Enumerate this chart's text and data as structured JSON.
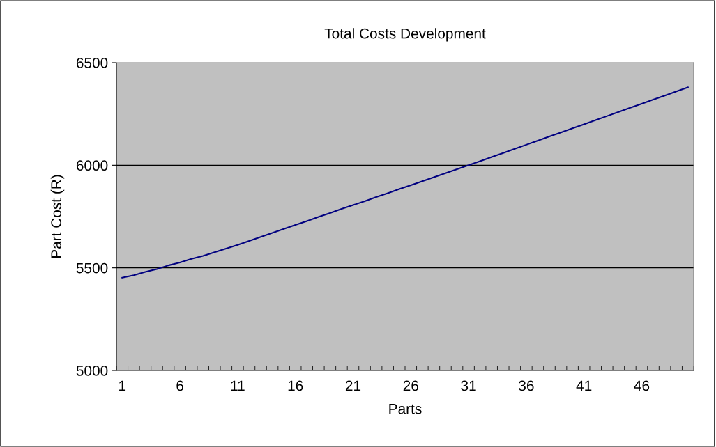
{
  "chart_data": {
    "type": "line",
    "title": "Total Costs Development",
    "xlabel": "Parts",
    "ylabel": "Part Cost (R)",
    "categories": [
      "1",
      null,
      null,
      null,
      null,
      "6",
      null,
      null,
      null,
      null,
      "11",
      null,
      null,
      null,
      null,
      "16",
      null,
      null,
      null,
      null,
      "21",
      null,
      null,
      null,
      null,
      "26",
      null,
      null,
      null,
      null,
      "31",
      null,
      null,
      null,
      null,
      "36",
      null,
      null,
      null,
      null,
      "41",
      null,
      null,
      null,
      null,
      "46",
      null,
      null,
      null,
      null
    ],
    "series": [
      {
        "color": "#000080",
        "values": [
          5452,
          5464,
          5480,
          5494,
          5512,
          5526,
          5544,
          5558,
          5576,
          5594,
          5612,
          5631,
          5651,
          5670,
          5690,
          5709,
          5728,
          5748,
          5767,
          5787,
          5806,
          5825,
          5845,
          5864,
          5884,
          5903,
          5922,
          5942,
          5961,
          5981,
          6000,
          6020,
          6040,
          6060,
          6080,
          6100,
          6120,
          6140,
          6160,
          6180,
          6200,
          6220,
          6240,
          6260,
          6280,
          6300,
          6320,
          6340,
          6360,
          6380
        ]
      }
    ],
    "ylim": [
      5000,
      6500
    ],
    "yticks": [
      5000,
      5500,
      6000,
      6500
    ],
    "grid": "y",
    "marker": "none",
    "line_style": "solid"
  }
}
